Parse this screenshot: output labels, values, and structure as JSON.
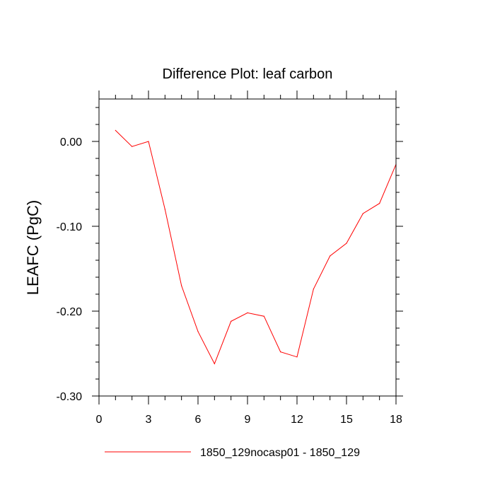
{
  "chart_data": {
    "type": "line",
    "title": "Difference Plot: leaf carbon",
    "xlabel": "",
    "ylabel": "LEAFC  (PgC)",
    "xlim": [
      0,
      18
    ],
    "ylim": [
      -0.3,
      0.05
    ],
    "xticks": [
      0,
      3,
      6,
      9,
      12,
      15,
      18
    ],
    "xtick_labels": [
      "0",
      "3",
      "6",
      "9",
      "12",
      "15",
      "18"
    ],
    "yticks": [
      0.0,
      -0.1,
      -0.2,
      -0.3
    ],
    "ytick_labels": [
      "0.00",
      "-0.10",
      "-0.20",
      "-0.30"
    ],
    "grid": false,
    "legend_position": "bottom",
    "series": [
      {
        "name": "1850_129nocasp01 - 1850_129",
        "color": "#ff0000",
        "x": [
          1,
          2,
          3,
          4,
          5,
          6,
          7,
          8,
          9,
          10,
          11,
          12,
          13,
          14,
          15,
          16,
          17,
          18
        ],
        "values": [
          0.013,
          -0.006,
          0.0,
          -0.08,
          -0.17,
          -0.224,
          -0.262,
          -0.212,
          -0.202,
          -0.206,
          -0.248,
          -0.254,
          -0.174,
          -0.135,
          -0.12,
          -0.085,
          -0.073,
          -0.027
        ]
      }
    ]
  }
}
